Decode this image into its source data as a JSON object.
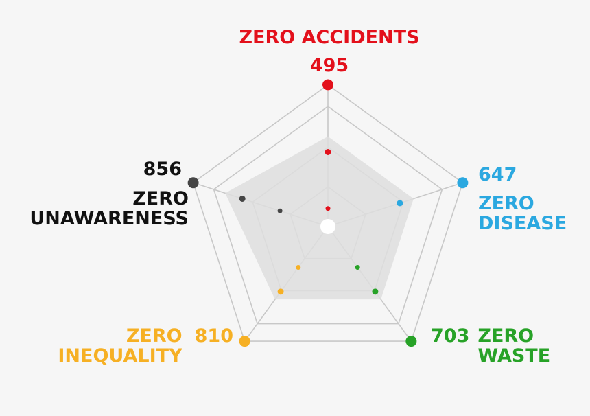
{
  "chart_data": {
    "type": "radar",
    "axes": [
      {
        "name": "ZERO ACCIDENTS",
        "line1": "ZERO ACCIDENTS",
        "line2": "",
        "value": 495,
        "color": "#e3101b",
        "rings": [
          0.15,
          0.62,
          1.0
        ]
      },
      {
        "name": "ZERO DISEASE",
        "line1": "ZERO",
        "line2": "DISEASE",
        "value": 647,
        "color": "#2ba8e0",
        "rings": [
          0.63,
          1.0
        ]
      },
      {
        "name": "ZERO WASTE",
        "line1": "ZERO",
        "line2": "WASTE",
        "value": 703,
        "color": "#27a227",
        "rings": [
          0.42,
          0.67,
          1.0
        ]
      },
      {
        "name": "ZERO INEQUALITY",
        "line1": "ZERO",
        "line2": "INEQUALITY",
        "value": 810,
        "color": "#f6b024",
        "rings": [
          0.42,
          0.67,
          1.0
        ]
      },
      {
        "name": "ZERO UNAWARENESS",
        "line1": "ZERO",
        "line2": "UNAWARENESS",
        "value": 856,
        "color": "#464646",
        "rings": [
          0.42,
          0.75,
          1.0
        ]
      }
    ],
    "area": [
      0.75,
      0.75,
      0.75,
      0.75,
      0.9
    ],
    "grid_rings": [
      0.33,
      0.66,
      1.0
    ],
    "outer_ring": 1.2,
    "grid_color": "#c8c8c8",
    "area_color": "#dedede"
  }
}
